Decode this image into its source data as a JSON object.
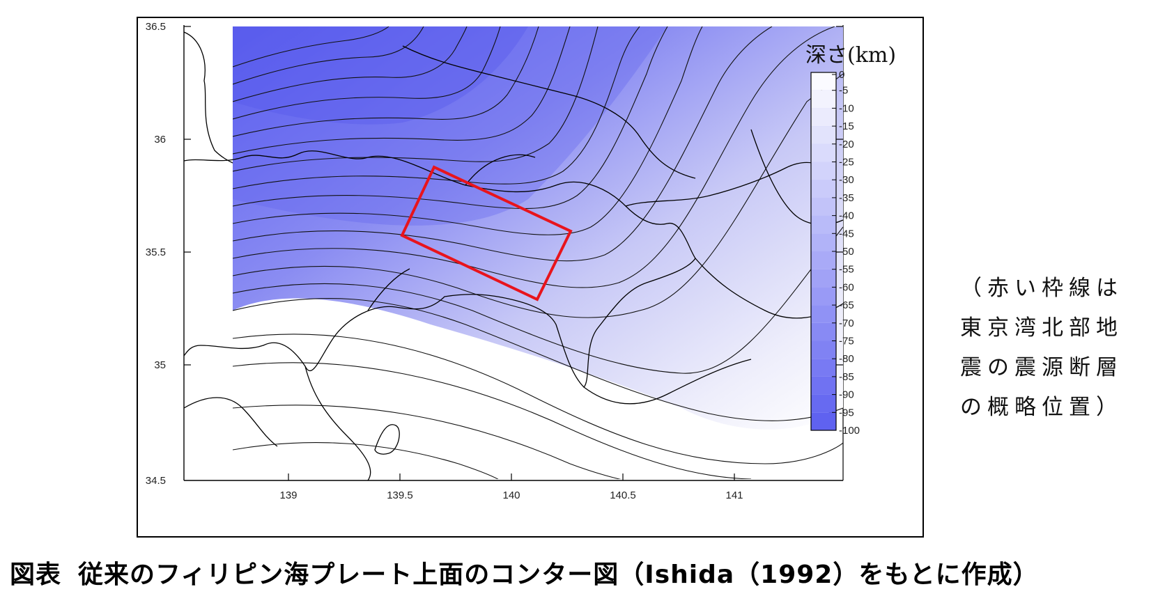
{
  "map": {
    "y_ticks": [
      "36.5",
      "36",
      "35.5",
      "35",
      "34.5"
    ],
    "x_ticks": [
      "139",
      "139.5",
      "140",
      "140.5",
      "141"
    ]
  },
  "legend": {
    "title": "深さ(km)",
    "levels": [
      "0",
      "-5",
      "-10",
      "-15",
      "-20",
      "-25",
      "-30",
      "-35",
      "-40",
      "-45",
      "-50",
      "-55",
      "-60",
      "-65",
      "-70",
      "-75",
      "-80",
      "-85",
      "-90",
      "-95",
      "-100"
    ],
    "color_shallow": "#ffffff",
    "color_deep": "#5b5ef0"
  },
  "highlight": {
    "color": "#e8141c"
  },
  "note": {
    "lines": [
      "（赤い枠線は",
      "東京湾北部地",
      "震の震源断層",
      "の概略位置）"
    ]
  },
  "caption": {
    "label": "図表",
    "text": "従来のフィリピン海プレート上面のコンター図（Ishida（1992）をもとに作成）"
  }
}
